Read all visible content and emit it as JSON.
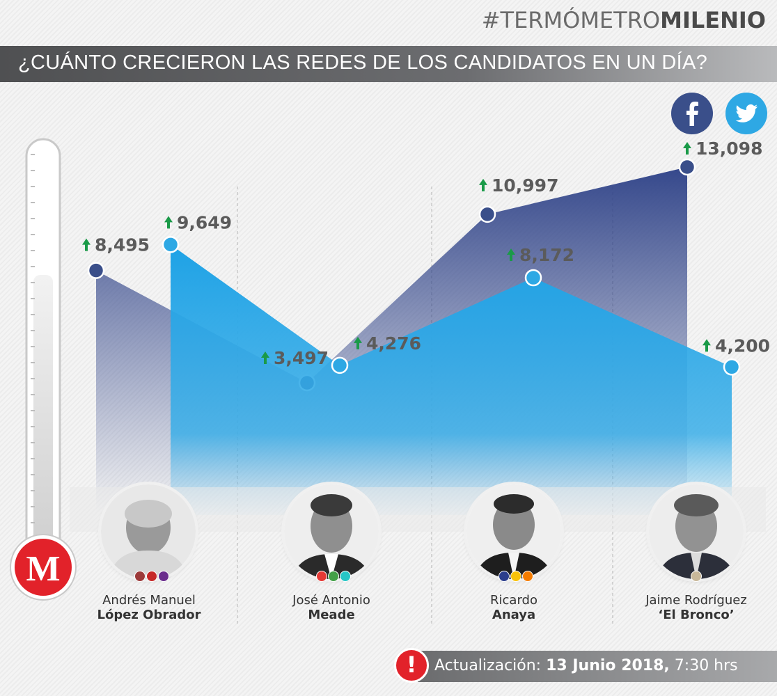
{
  "brand": {
    "hashtag": "#TERMÓMETRO",
    "name": "MILENIO"
  },
  "title": "¿CUÁNTO CRECIERON LAS REDES DE LOS CANDIDATOS EN UN DÍA?",
  "legend": {
    "facebook_icon": "facebook-icon",
    "twitter_icon": "twitter-icon"
  },
  "colors": {
    "facebook": "#3a4f8a",
    "twitter": "#2ea8e4",
    "arrow": "#1a9a48",
    "logo_red": "#e2222a"
  },
  "candidates": [
    {
      "first": "Andrés Manuel",
      "last": "López Obrador",
      "party_colors": [
        "#9c3a3a",
        "#c62828",
        "#6a2c8c"
      ]
    },
    {
      "first": "José Antonio",
      "last": "Meade",
      "party_colors": [
        "#e53935",
        "#43a047",
        "#26c6c6"
      ]
    },
    {
      "first": "Ricardo",
      "last": "Anaya",
      "party_colors": [
        "#2c3e8c",
        "#f9c20a",
        "#f57c00"
      ]
    },
    {
      "first": "Jaime Rodríguez",
      "last": "‘El Bronco’",
      "party_colors": [
        "#c8b89a"
      ]
    }
  ],
  "chart_data": {
    "type": "area",
    "categories": [
      "Andrés Manuel López Obrador",
      "José Antonio Meade",
      "Ricardo Anaya",
      "Jaime Rodríguez ‘El Bronco’"
    ],
    "series": [
      {
        "icon": "facebook-icon",
        "color": "#3a4f8a",
        "values": [
          8495,
          3497,
          10997,
          13098
        ],
        "labels": [
          "8,495",
          "3,497",
          "10,997",
          "13,098"
        ]
      },
      {
        "icon": "twitter-icon",
        "color": "#2ea8e4",
        "values": [
          9649,
          4276,
          8172,
          4200
        ],
        "labels": [
          "9,649",
          "4,276",
          "8,172",
          "4,200"
        ]
      }
    ]
  },
  "update": {
    "label": "Actualización:",
    "date": "13 Junio 2018,",
    "time": "7:30 hrs"
  },
  "logo": "M"
}
